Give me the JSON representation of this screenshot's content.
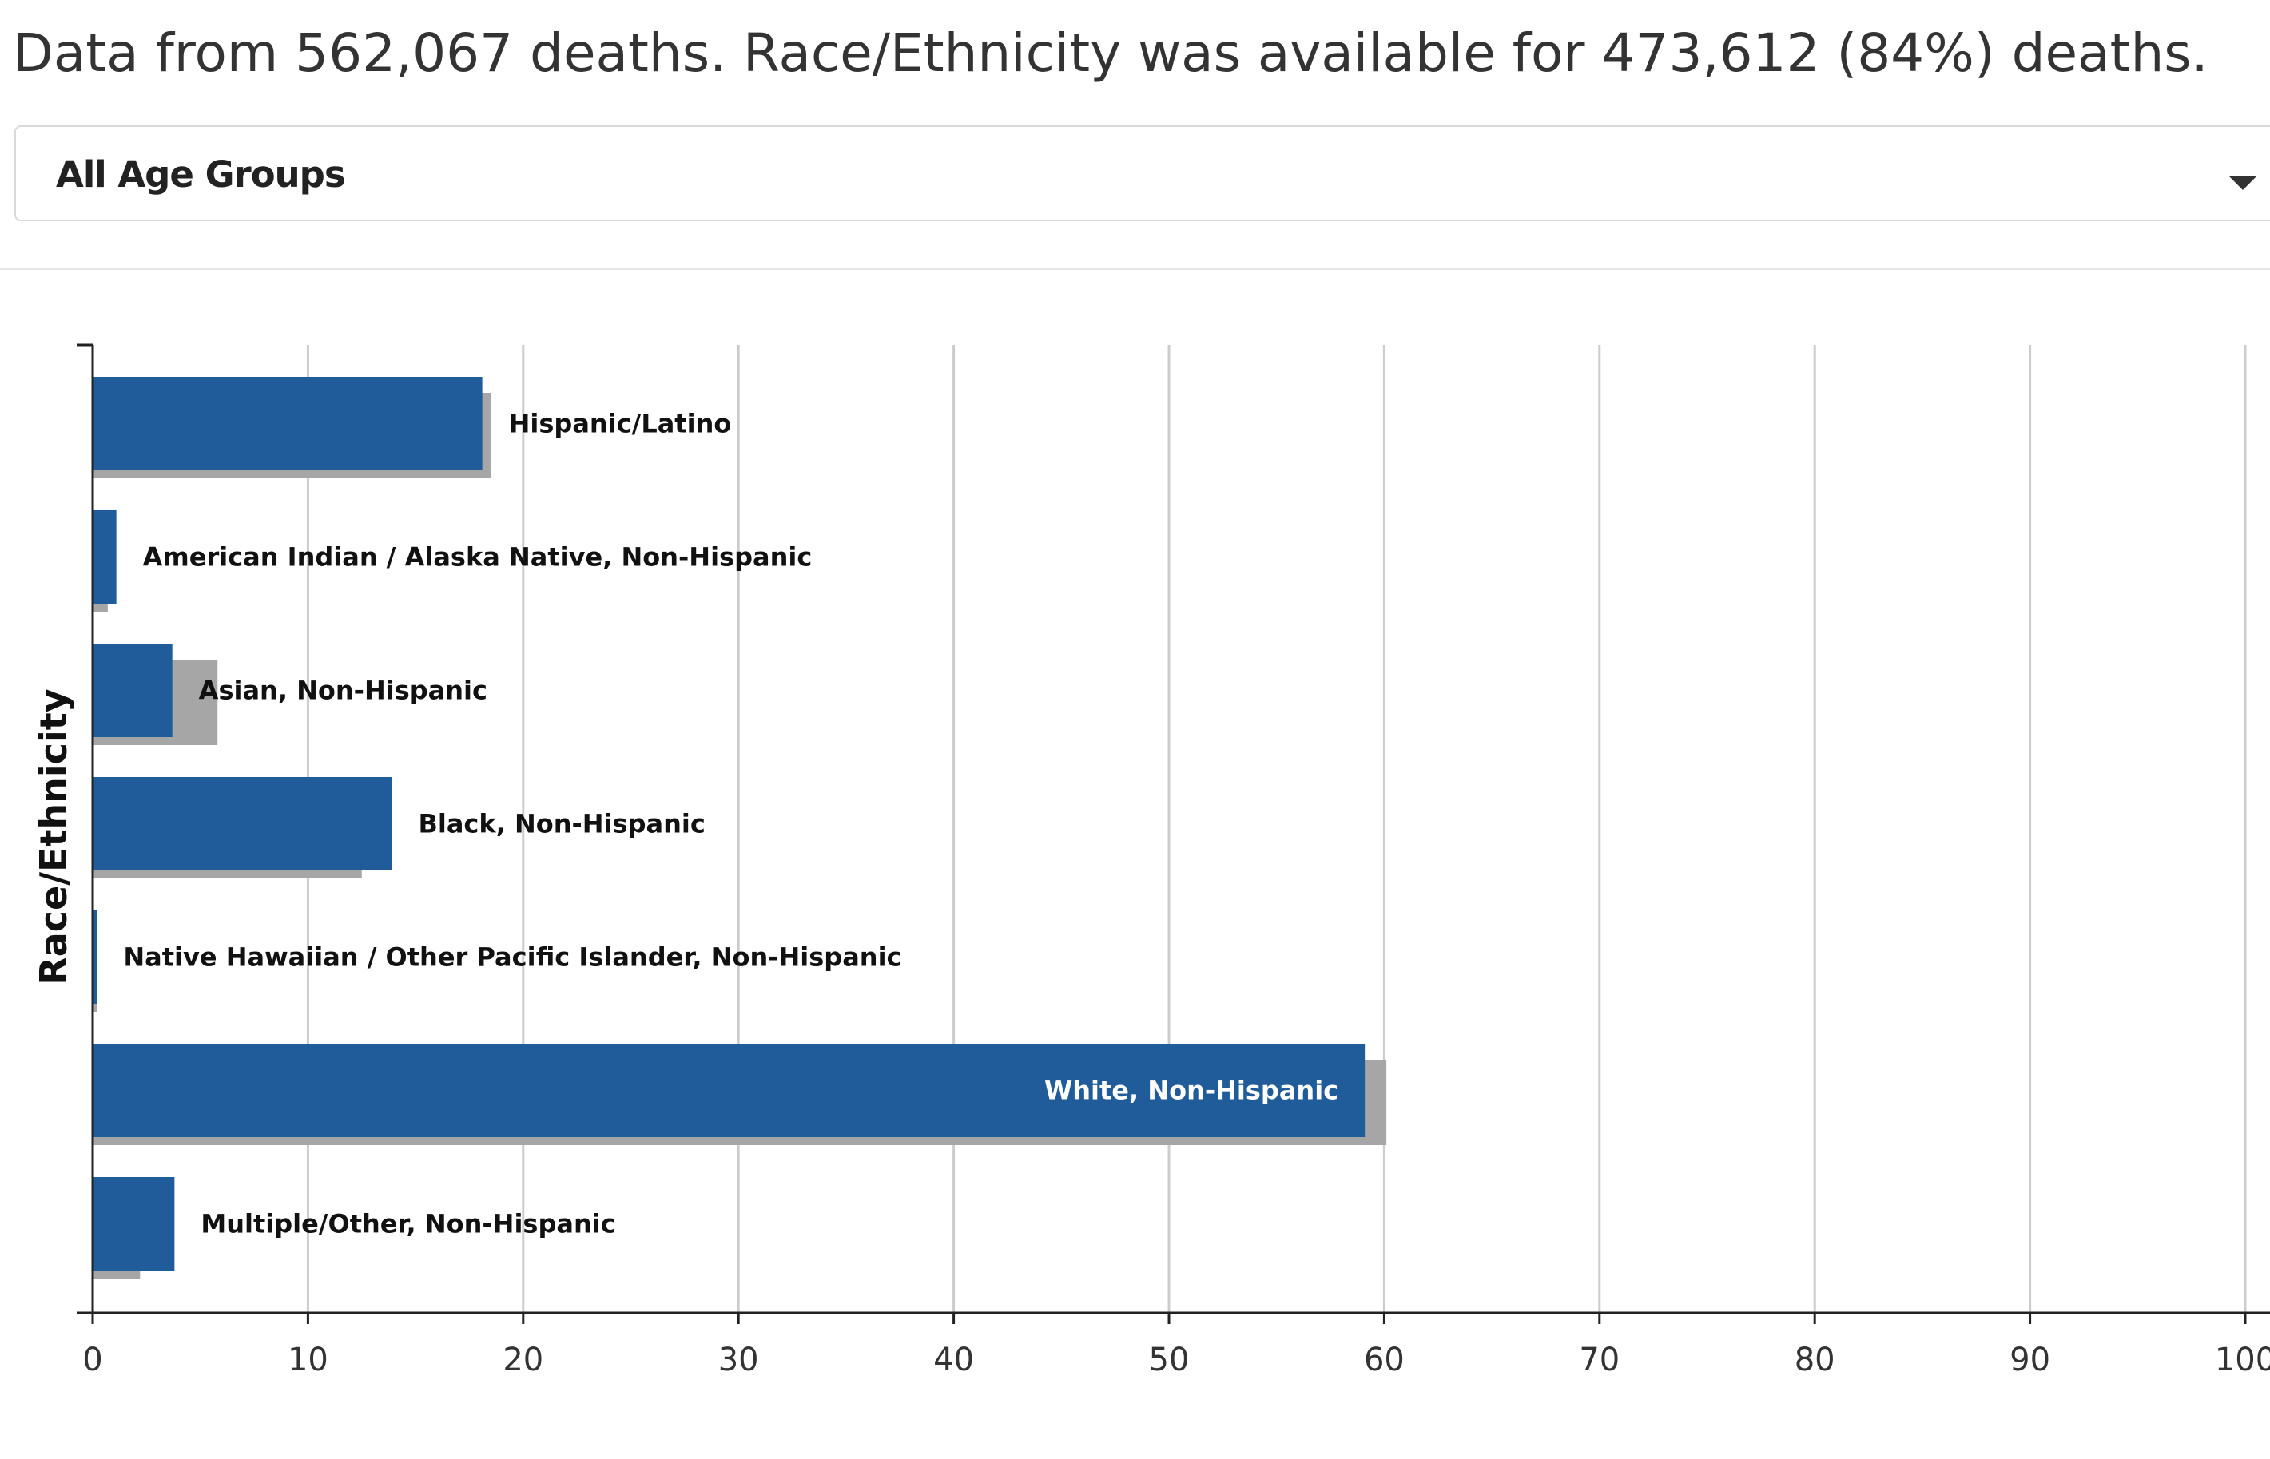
{
  "summary_text": "Data from 562,067 deaths. Race/Ethnicity was available for 473,612 (84%) deaths.",
  "age_filter": {
    "selected": "All Age Groups",
    "icon": "chevron-down-icon"
  },
  "chart_data": {
    "type": "bar",
    "orientation": "horizontal",
    "ylabel": "Race/Ethnicity",
    "xlabel": "",
    "xlim": [
      0,
      100
    ],
    "x_ticks": [
      "0",
      "10",
      "20",
      "30",
      "40",
      "50",
      "60",
      "70",
      "80",
      "90",
      "100"
    ],
    "grid": true,
    "categories": [
      "Hispanic/Latino",
      "American Indian / Alaska Native, Non-Hispanic",
      "Asian, Non-Hispanic",
      "Black, Non-Hispanic",
      "Native Hawaiian / Other Pacific Islander, Non-Hispanic",
      "White, Non-Hispanic",
      "Multiple/Other, Non-Hispanic"
    ],
    "series": [
      {
        "color": "#1f5c99",
        "values": [
          18.1,
          1.1,
          3.7,
          13.9,
          0.2,
          59.1,
          3.8
        ]
      },
      {
        "color": "#a6a6a6",
        "values": [
          18.5,
          0.7,
          5.8,
          12.5,
          0.2,
          60.1,
          2.2
        ]
      }
    ]
  }
}
